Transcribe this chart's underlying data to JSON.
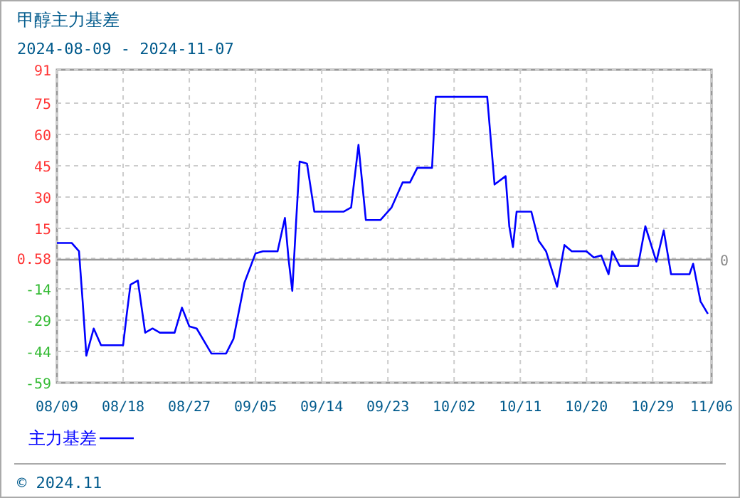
{
  "chart_data": {
    "type": "line",
    "title": "甲醇主力基差",
    "subtitle": "2024-08-09 - 2024-11-07",
    "annotations": [
      "© 2024.11"
    ],
    "x": [
      "2024-08-09",
      "2024-08-11",
      "2024-08-12",
      "2024-08-12T12:00",
      "2024-08-13",
      "2024-08-14",
      "2024-08-15",
      "2024-08-18",
      "2024-08-18T12:00",
      "2024-08-19",
      "2024-08-20",
      "2024-08-21",
      "2024-08-22",
      "2024-08-23",
      "2024-08-25",
      "2024-08-26",
      "2024-08-27",
      "2024-08-28",
      "2024-08-29T12:00",
      "2024-08-30",
      "2024-09-01",
      "2024-09-02",
      "2024-09-03T12:00",
      "2024-09-05",
      "2024-09-06",
      "2024-09-08",
      "2024-09-09",
      "2024-09-09T12:00",
      "2024-09-10",
      "2024-09-10T12:00",
      "2024-09-11",
      "2024-09-12",
      "2024-09-13",
      "2024-09-17",
      "2024-09-18",
      "2024-09-19",
      "2024-09-20",
      "2024-09-22",
      "2024-09-23T12:00",
      "2024-09-25",
      "2024-09-26",
      "2024-09-27",
      "2024-09-29",
      "2024-09-29T12:00",
      "2024-10-06T12:00",
      "2024-10-07T12:00",
      "2024-10-09",
      "2024-10-09T12:00",
      "2024-10-10",
      "2024-10-10T12:00",
      "2024-10-12T12:00",
      "2024-10-13T12:00",
      "2024-10-14T12:00",
      "2024-10-16",
      "2024-10-17",
      "2024-10-18",
      "2024-10-20",
      "2024-10-21",
      "2024-10-22",
      "2024-10-23",
      "2024-10-23T12:00",
      "2024-10-24T12:00",
      "2024-10-27",
      "2024-10-28",
      "2024-10-29T12:00",
      "2024-10-30T12:00",
      "2024-10-31T12:00",
      "2024-11-03",
      "2024-11-03T12:00",
      "2024-11-04T12:00",
      "2024-11-05T12:00"
    ],
    "series": [
      {
        "name": "主力基差",
        "color": "#0000ff",
        "values": [
          8,
          8,
          4,
          -20,
          -46,
          -33,
          -41,
          -41,
          -26,
          -12,
          -10,
          -35,
          -33,
          -35,
          -35,
          -23,
          -32,
          -33,
          -42,
          -45,
          -45,
          -38,
          -11,
          3,
          4,
          4,
          20,
          0,
          -15,
          17,
          47,
          46,
          23,
          23,
          25,
          55,
          19,
          19,
          25,
          37,
          37,
          44,
          44,
          78,
          78,
          36,
          40,
          16,
          6,
          23,
          23,
          9,
          4,
          -13,
          7,
          4,
          4,
          1,
          2,
          -7,
          4,
          -3,
          -3,
          16,
          -1,
          14,
          -7,
          -7,
          -2,
          -20,
          -26
        ]
      }
    ],
    "xlim": [
      "2024-08-09",
      "2024-11-06"
    ],
    "xticks": [
      {
        "value": "2024-08-09",
        "label": "08/09"
      },
      {
        "value": "2024-08-18",
        "label": "08/18"
      },
      {
        "value": "2024-08-27",
        "label": "08/27"
      },
      {
        "value": "2024-09-05",
        "label": "09/05"
      },
      {
        "value": "2024-09-14",
        "label": "09/14"
      },
      {
        "value": "2024-09-23",
        "label": "09/23"
      },
      {
        "value": "2024-10-02",
        "label": "10/02"
      },
      {
        "value": "2024-10-11",
        "label": "10/11"
      },
      {
        "value": "2024-10-20",
        "label": "10/20"
      },
      {
        "value": "2024-10-29",
        "label": "10/29"
      },
      {
        "value": "2024-11-06",
        "label": "11/06"
      }
    ],
    "ylim": [
      -59,
      91
    ],
    "yticks": [
      91,
      75,
      60,
      45,
      30,
      15,
      0.58,
      -14,
      -29,
      -44,
      -59
    ],
    "ref_lines": [
      {
        "axis": "y",
        "value": 0,
        "label": "0",
        "color": "#999999"
      }
    ],
    "grid": true,
    "legend": "bottom left",
    "marker": "none",
    "line_style": "solid"
  }
}
